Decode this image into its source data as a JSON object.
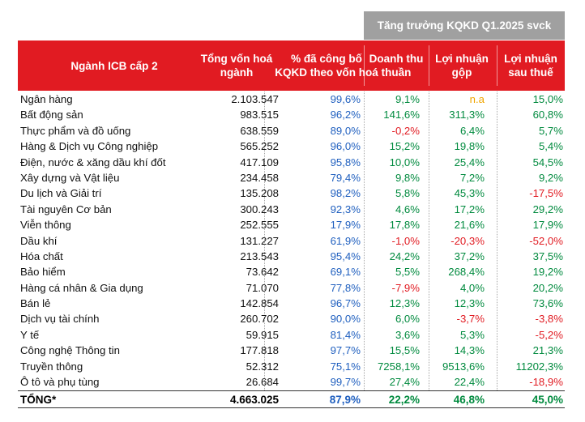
{
  "group_header": "Tăng trưởng KQKD Q1.2025 svck",
  "columns": [
    "Ngành ICB cấp 2",
    "Tổng vốn hoá\nngành",
    "% đã công bố\nKQKD theo vốn hoá",
    "Doanh thu\nthuần",
    "Lợi nhuận\ngộp",
    "Lợi nhuận\nsau thuế"
  ],
  "rows": [
    [
      "Ngân hàng",
      "2.103.547",
      "99,6%",
      "9,1%",
      "n.a",
      "15,0%"
    ],
    [
      "Bất động sản",
      "983.515",
      "96,2%",
      "141,6%",
      "311,3%",
      "60,8%"
    ],
    [
      "Thực phẩm và đồ uống",
      "638.559",
      "89,0%",
      "-0,2%",
      "6,4%",
      "5,7%"
    ],
    [
      "Hàng & Dịch vụ Công nghiệp",
      "565.252",
      "96,0%",
      "15,2%",
      "19,8%",
      "5,4%"
    ],
    [
      "Điện, nước & xăng dầu khí đốt",
      "417.109",
      "95,8%",
      "10,0%",
      "25,4%",
      "54,5%"
    ],
    [
      "Xây dựng và Vật liệu",
      "234.458",
      "79,4%",
      "9,8%",
      "7,2%",
      "9,2%"
    ],
    [
      "Du lịch và Giải trí",
      "135.208",
      "98,2%",
      "5,8%",
      "45,3%",
      "-17,5%"
    ],
    [
      "Tài nguyên Cơ bản",
      "300.243",
      "92,3%",
      "4,6%",
      "17,2%",
      "29,2%"
    ],
    [
      "Viễn thông",
      "252.555",
      "17,9%",
      "17,8%",
      "21,6%",
      "17,9%"
    ],
    [
      "Dầu khí",
      "131.227",
      "61,9%",
      "-1,0%",
      "-20,3%",
      "-52,0%"
    ],
    [
      "Hóa chất",
      "213.543",
      "95,4%",
      "24,2%",
      "37,2%",
      "37,5%"
    ],
    [
      "Bảo hiểm",
      "73.642",
      "69,1%",
      "5,5%",
      "268,4%",
      "19,2%"
    ],
    [
      "Hàng cá nhân & Gia dụng",
      "71.070",
      "77,8%",
      "-7,9%",
      "4,0%",
      "20,2%"
    ],
    [
      "Bán lẻ",
      "142.854",
      "96,7%",
      "12,3%",
      "12,3%",
      "73,6%"
    ],
    [
      "Dịch vụ tài chính",
      "260.702",
      "90,0%",
      "6,0%",
      "-3,7%",
      "-3,8%"
    ],
    [
      "Y tế",
      "59.915",
      "81,4%",
      "3,6%",
      "5,3%",
      "-5,2%"
    ],
    [
      "Công nghệ Thông tin",
      "177.818",
      "97,7%",
      "15,5%",
      "14,3%",
      "21,3%"
    ],
    [
      "Truyền thông",
      "52.312",
      "75,1%",
      "7258,1%",
      "9513,6%",
      "11202,3%"
    ],
    [
      "Ô tô và phụ tùng",
      "26.684",
      "99,7%",
      "27,4%",
      "22,4%",
      "-18,9%"
    ]
  ],
  "total": [
    "TỔNG*",
    "4.663.025",
    "87,9%",
    "22,2%",
    "46,8%",
    "45,0%"
  ],
  "colors": {
    "header_red": "#e11b22",
    "group_gray": "#a0a0a0",
    "positive": "#008a3e",
    "negative": "#e11b22",
    "na": "#f0a500",
    "share": "#1f5fbf"
  }
}
